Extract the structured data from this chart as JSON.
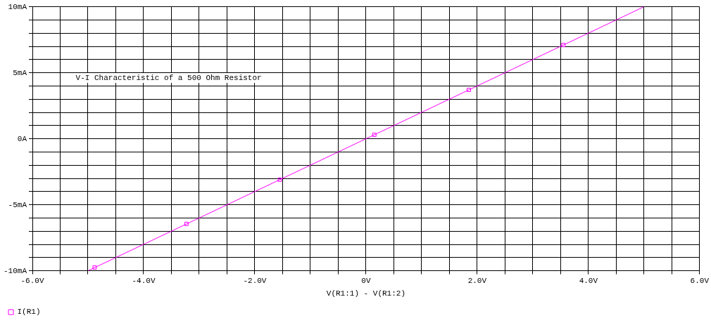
{
  "chart_data": {
    "type": "line",
    "xlabel": "V(R1:1) - V(R1:2)",
    "annotations": [
      "V-I Characteristic of a 500 Ohm Resistor"
    ],
    "series": [
      {
        "color": "#ff00ff",
        "x": [
          -5,
          5
        ],
        "values": [
          -10,
          10
        ],
        "marker": "none"
      },
      {
        "type": "scatter",
        "name": "I(R1)",
        "color": "#ff00ff",
        "x": [
          -4.88,
          -3.23,
          -1.55,
          0.15,
          1.85,
          3.55
        ],
        "values": [
          -9.75,
          -6.45,
          -3.1,
          0.3,
          3.7,
          7.1
        ],
        "marker": "square"
      }
    ],
    "xlim": [
      -6,
      6
    ],
    "xticks": [
      {
        "value": -6,
        "label": "-6.0V"
      },
      {
        "value": -5.5,
        "label": null
      },
      {
        "value": -5,
        "label": null
      },
      {
        "value": -4.5,
        "label": null
      },
      {
        "value": -4,
        "label": "-4.0V"
      },
      {
        "value": -3.5,
        "label": null
      },
      {
        "value": -3,
        "label": null
      },
      {
        "value": -2.5,
        "label": null
      },
      {
        "value": -2,
        "label": "-2.0V"
      },
      {
        "value": -1.5,
        "label": null
      },
      {
        "value": -1,
        "label": null
      },
      {
        "value": -0.5,
        "label": null
      },
      {
        "value": 0,
        "label": "0V"
      },
      {
        "value": 0.5,
        "label": null
      },
      {
        "value": 1,
        "label": null
      },
      {
        "value": 1.5,
        "label": null
      },
      {
        "value": 2,
        "label": "2.0V"
      },
      {
        "value": 2.5,
        "label": null
      },
      {
        "value": 3,
        "label": null
      },
      {
        "value": 3.5,
        "label": null
      },
      {
        "value": 4,
        "label": "4.0V"
      },
      {
        "value": 4.5,
        "label": null
      },
      {
        "value": 5,
        "label": null
      },
      {
        "value": 5.5,
        "label": null
      },
      {
        "value": 6,
        "label": "6.0V"
      }
    ],
    "ylim": [
      -10,
      10
    ],
    "yticks": [
      {
        "value": -10,
        "label": "-10mA"
      },
      {
        "value": -9,
        "label": null
      },
      {
        "value": -8,
        "label": null
      },
      {
        "value": -7,
        "label": null
      },
      {
        "value": -6,
        "label": null
      },
      {
        "value": -5,
        "label": "-5mA"
      },
      {
        "value": -4,
        "label": null
      },
      {
        "value": -3,
        "label": null
      },
      {
        "value": -2,
        "label": null
      },
      {
        "value": -1,
        "label": null
      },
      {
        "value": 0,
        "label": "0A"
      },
      {
        "value": 1,
        "label": null
      },
      {
        "value": 2,
        "label": null
      },
      {
        "value": 3,
        "label": null
      },
      {
        "value": 4,
        "label": null
      },
      {
        "value": 5,
        "label": "5mA"
      },
      {
        "value": 6,
        "label": null
      },
      {
        "value": 7,
        "label": null
      },
      {
        "value": 8,
        "label": null
      },
      {
        "value": 9,
        "label": null
      },
      {
        "value": 10,
        "label": "10mA"
      }
    ],
    "grid": true,
    "legend": "bottom left"
  }
}
